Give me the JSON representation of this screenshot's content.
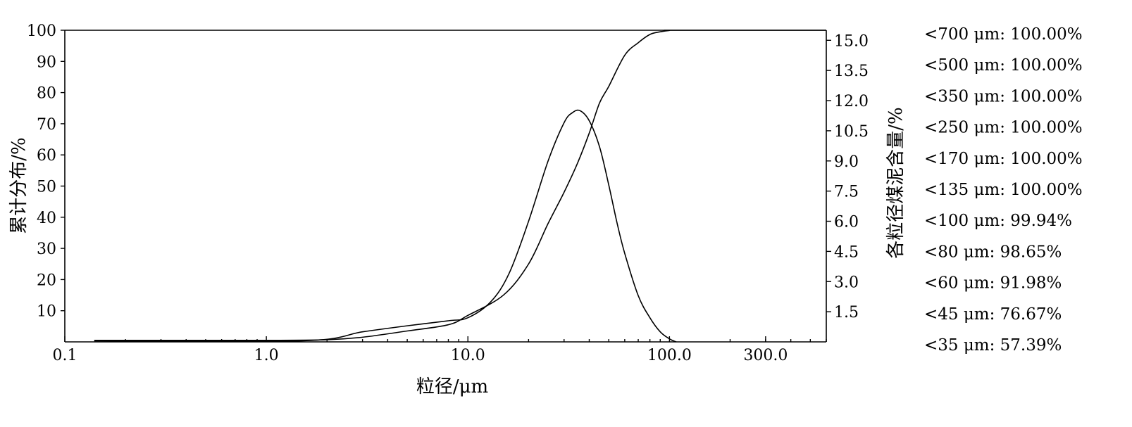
{
  "chart_data": {
    "type": "line",
    "xlabel": "粒径/μm",
    "ylabel_left": "累计分布/%",
    "ylabel_right": "各粒径煤泥含量/%",
    "x_scale": "log",
    "xlim": [
      0.1,
      600
    ],
    "ylim_left": [
      0,
      100
    ],
    "ylim_right": [
      0,
      15.5
    ],
    "x_ticks": [
      {
        "value": 0.1,
        "label": "0.1"
      },
      {
        "value": 1.0,
        "label": "1.0"
      },
      {
        "value": 10.0,
        "label": "10.0"
      },
      {
        "value": 100.0,
        "label": "100.0"
      },
      {
        "value": 300.0,
        "label": "300.0"
      }
    ],
    "y_left_ticks": [
      {
        "value": 10,
        "label": "10"
      },
      {
        "value": 20,
        "label": "20"
      },
      {
        "value": 30,
        "label": "30"
      },
      {
        "value": 40,
        "label": "40"
      },
      {
        "value": 50,
        "label": "50"
      },
      {
        "value": 60,
        "label": "60"
      },
      {
        "value": 70,
        "label": "70"
      },
      {
        "value": 80,
        "label": "80"
      },
      {
        "value": 90,
        "label": "90"
      },
      {
        "value": 100,
        "label": "100"
      }
    ],
    "y_right_ticks": [
      {
        "value": 1.5,
        "label": "1.5"
      },
      {
        "value": 3.0,
        "label": "3.0"
      },
      {
        "value": 4.5,
        "label": "4.5"
      },
      {
        "value": 6.0,
        "label": "6.0"
      },
      {
        "value": 7.5,
        "label": "7.5"
      },
      {
        "value": 9.0,
        "label": "9.0"
      },
      {
        "value": 10.5,
        "label": "10.5"
      },
      {
        "value": 12.0,
        "label": "12.0"
      },
      {
        "value": 13.5,
        "label": "13.5"
      },
      {
        "value": 15.0,
        "label": "15.0"
      }
    ],
    "series": [
      {
        "axis": "left",
        "x": [
          0.14,
          1.0,
          2.0,
          3.0,
          5.0,
          8.0,
          10.0,
          15.0,
          20.0,
          25.0,
          30.0,
          35.0,
          40.0,
          45.0,
          50.0,
          60.0,
          70.0,
          80.0,
          90.0,
          100.0,
          110.0,
          600.0
        ],
        "y": [
          0.5,
          0.5,
          0.7,
          1.5,
          3.5,
          5.5,
          8.5,
          15.0,
          25.0,
          38.0,
          48.0,
          57.39,
          67.0,
          76.67,
          82.0,
          91.98,
          96.0,
          98.65,
          99.5,
          99.94,
          100.0,
          100.0
        ]
      },
      {
        "axis": "right",
        "x": [
          0.14,
          1.5,
          3.0,
          5.0,
          8.0,
          10.0,
          13.0,
          16.0,
          20.0,
          25.0,
          30.0,
          33.0,
          36.0,
          40.0,
          45.0,
          50.0,
          55.0,
          60.0,
          70.0,
          80.0,
          90.0,
          100.0,
          108.0
        ],
        "y": [
          0.05,
          0.05,
          0.5,
          0.8,
          1.05,
          1.2,
          2.0,
          3.4,
          6.0,
          9.0,
          10.9,
          11.4,
          11.5,
          11.0,
          9.7,
          7.8,
          5.9,
          4.4,
          2.3,
          1.2,
          0.5,
          0.15,
          0.0
        ]
      }
    ],
    "annotations": [
      "<700 μm: 100.00%",
      "<500 μm: 100.00%",
      "<350 μm: 100.00%",
      "<250 μm: 100.00%",
      "<170 μm: 100.00%",
      "<135 μm: 100.00%",
      "<100 μm: 99.94%",
      "<80 μm: 98.65%",
      "<60 μm: 91.98%",
      "<45 μm: 76.67%",
      "<35 μm: 57.39%"
    ]
  }
}
